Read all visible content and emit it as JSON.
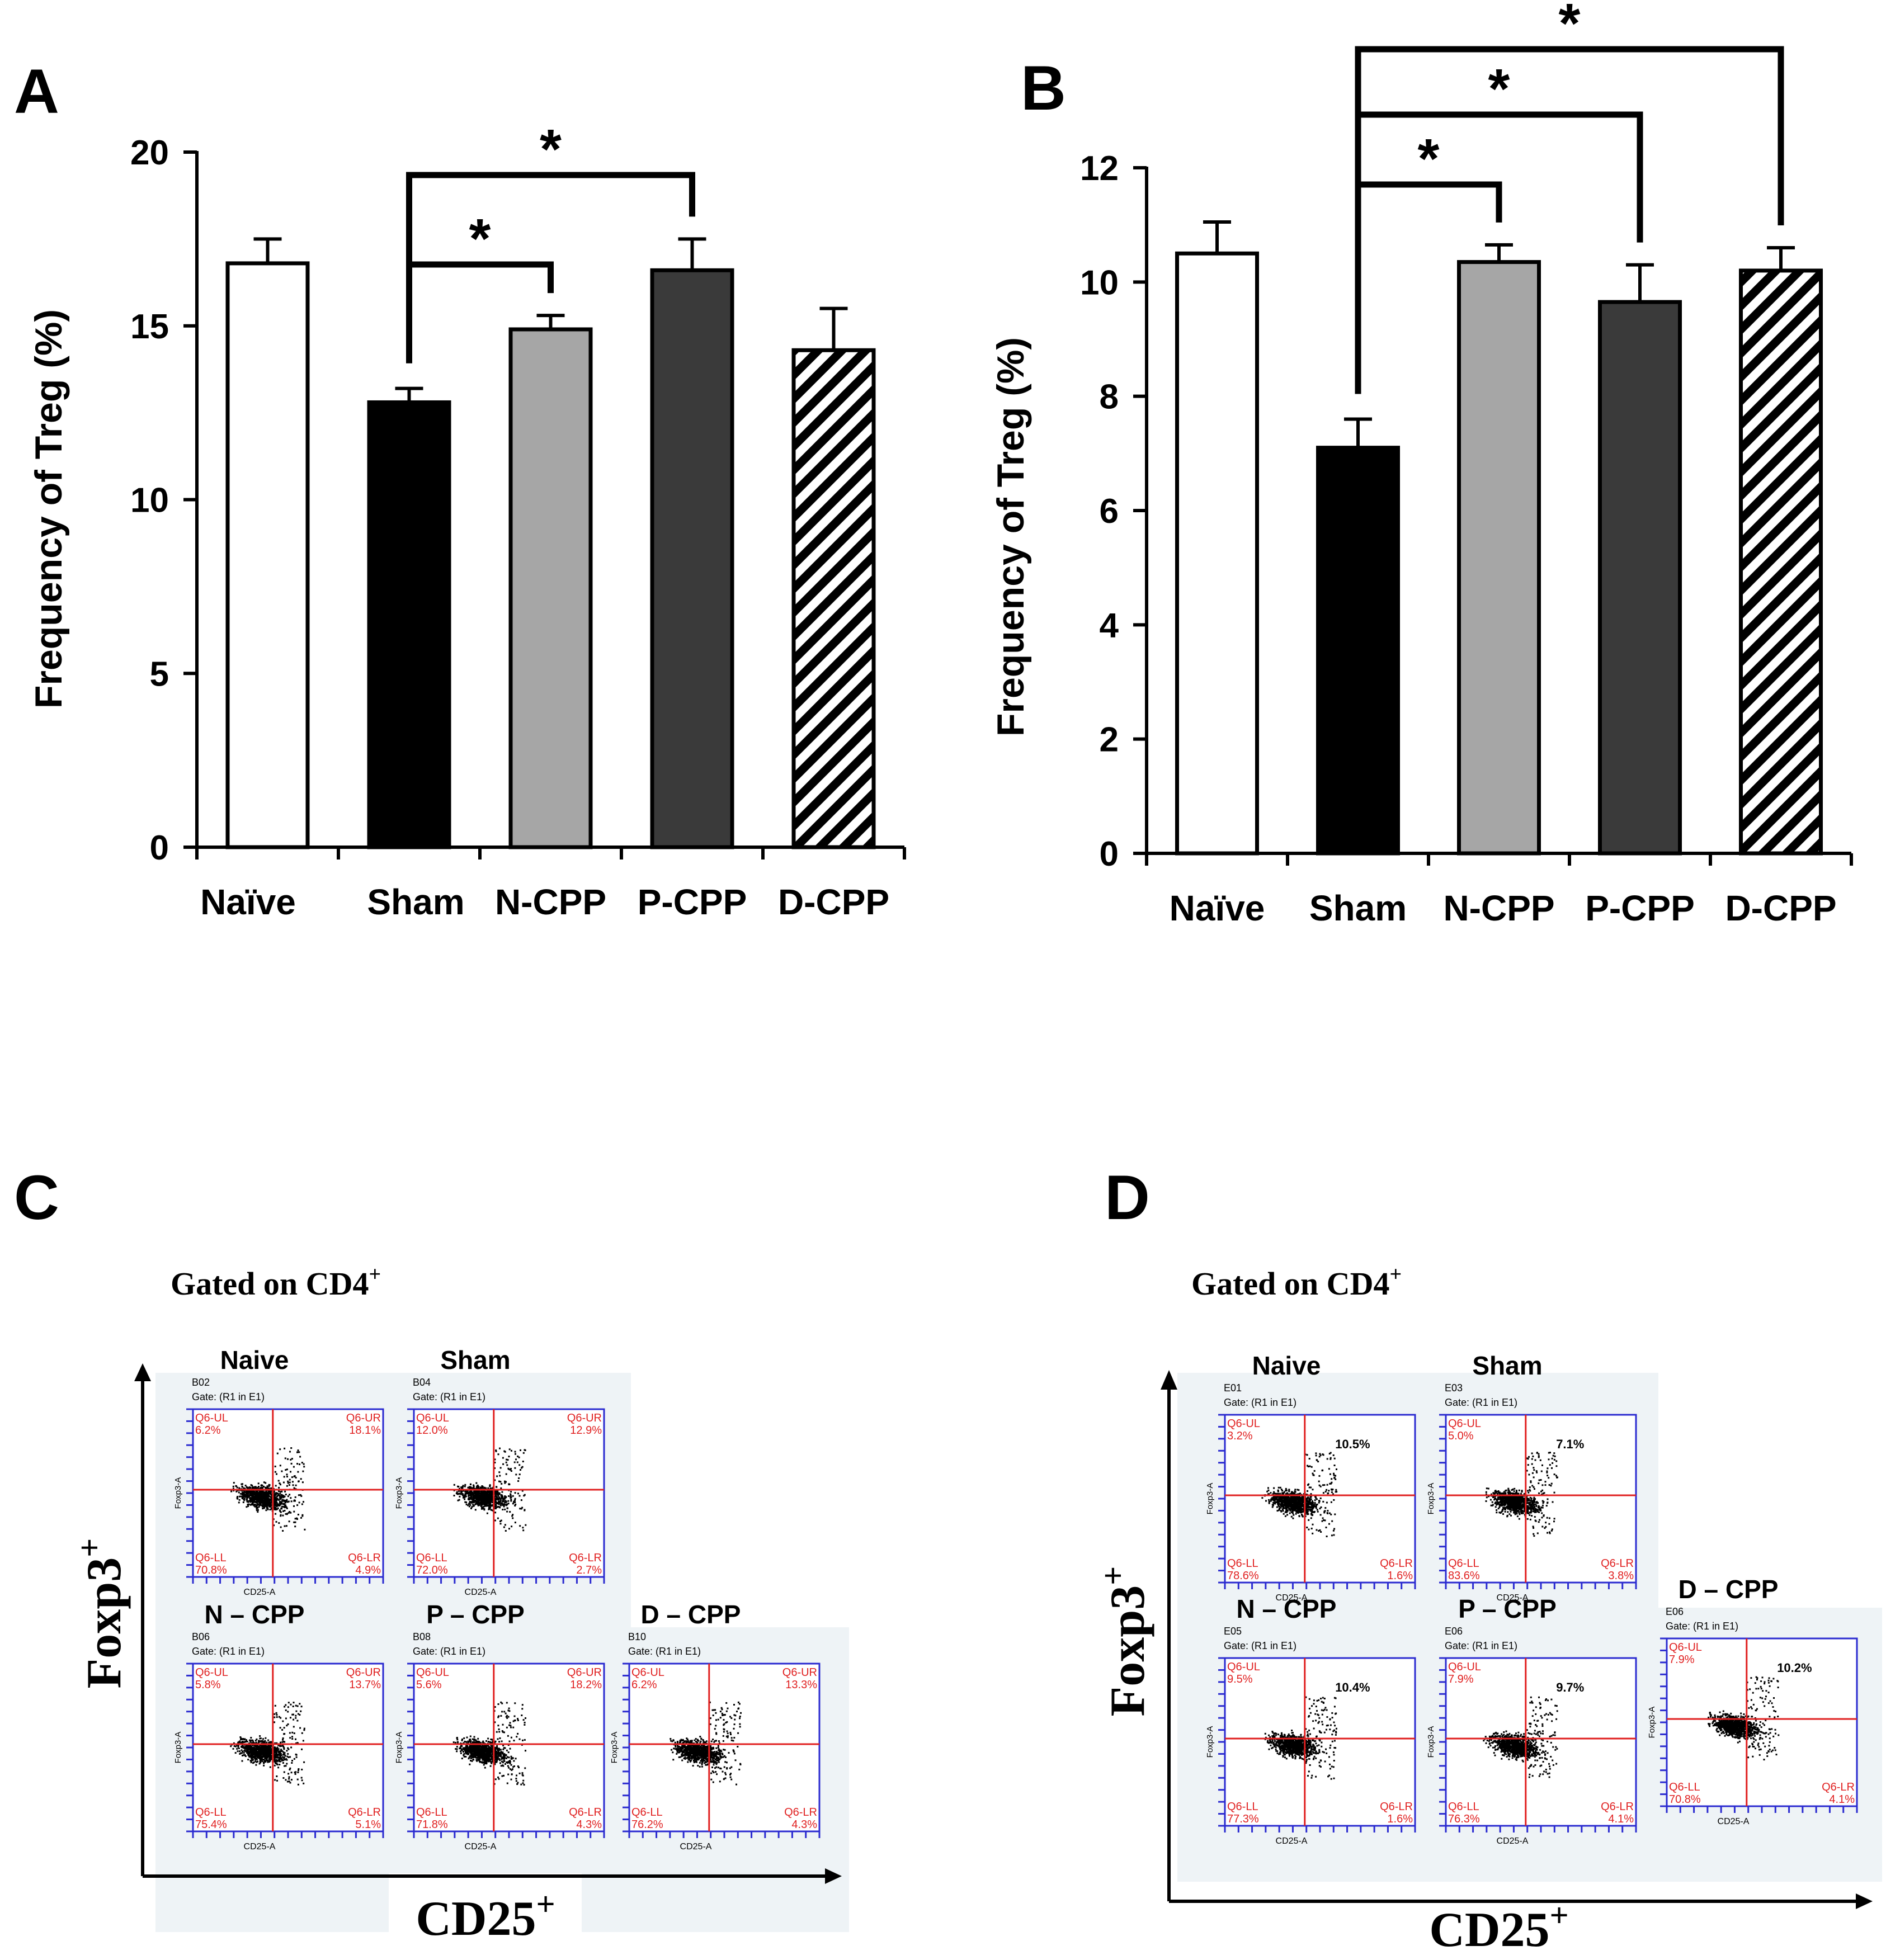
{
  "panels": [
    {
      "letter": "A",
      "chart_data": {
        "type": "bar",
        "ylabel": "Frequency of Treg (%)",
        "ylim": [
          0,
          20
        ],
        "yticks": [
          0,
          5,
          10,
          15,
          20
        ],
        "categories": [
          "Naïve",
          "Sham",
          "N-CPP",
          "P-CPP",
          "D-CPP"
        ],
        "values": [
          16.8,
          12.8,
          14.9,
          16.6,
          14.3
        ],
        "errors": [
          0.7,
          0.4,
          0.4,
          0.9,
          1.2
        ],
        "fills": [
          "#ffffff",
          "#000000",
          "#a6a6a6",
          "#3a3a3a",
          "hatch"
        ],
        "significance": [
          {
            "from": "Sham",
            "to": "N-CPP",
            "label": "*"
          },
          {
            "from": "Sham",
            "to": "P-CPP",
            "label": "*"
          }
        ]
      }
    },
    {
      "letter": "B",
      "chart_data": {
        "type": "bar",
        "ylabel": "Frequency of Treg (%)",
        "ylim": [
          0,
          12
        ],
        "yticks": [
          0,
          2,
          4,
          6,
          8,
          10,
          12
        ],
        "categories": [
          "Naïve",
          "Sham",
          "N-CPP",
          "P-CPP",
          "D-CPP"
        ],
        "values": [
          10.5,
          7.1,
          10.35,
          9.65,
          10.2
        ],
        "errors": [
          0.55,
          0.5,
          0.3,
          0.65,
          0.4
        ],
        "fills": [
          "#ffffff",
          "#000000",
          "#a6a6a6",
          "#3a3a3a",
          "hatch"
        ],
        "significance": [
          {
            "from": "Sham",
            "to": "N-CPP",
            "label": "*"
          },
          {
            "from": "Sham",
            "to": "P-CPP",
            "label": "*"
          },
          {
            "from": "Sham",
            "to": "D-CPP",
            "label": "*"
          }
        ]
      }
    }
  ],
  "flow": [
    {
      "letter": "C",
      "gated_label": "Gated on CD4",
      "gated_sup": "+",
      "yaxis_label": "Foxp3",
      "yaxis_sup": "+",
      "xaxis_label": "CD25",
      "xaxis_sup": "+",
      "plots": [
        {
          "title": "Naive",
          "well": "B02",
          "gate": "Gate: (R1 in E1)",
          "ul": "Q6-UL",
          "ul_val": "6.2%",
          "ur": "Q6-UR",
          "ur_val": "18.1%",
          "ll": "Q6-LL",
          "ll_val": "70.8%",
          "lr": "Q6-LR",
          "lr_val": "4.9%",
          "center": "",
          "xlabel": "CD25-A",
          "ylabel": "Foxp3-A"
        },
        {
          "title": "Sham",
          "well": "B04",
          "gate": "Gate: (R1 in E1)",
          "ul": "Q6-UL",
          "ul_val": "12.0%",
          "ur": "Q6-UR",
          "ur_val": "12.9%",
          "ll": "Q6-LL",
          "ll_val": "72.0%",
          "lr": "Q6-LR",
          "lr_val": "2.7%",
          "center": "",
          "xlabel": "CD25-A",
          "ylabel": "Foxp3-A"
        },
        {
          "title": "N – CPP",
          "well": "B06",
          "gate": "Gate: (R1 in E1)",
          "ul": "Q6-UL",
          "ul_val": "5.8%",
          "ur": "Q6-UR",
          "ur_val": "13.7%",
          "ll": "Q6-LL",
          "ll_val": "75.4%",
          "lr": "Q6-LR",
          "lr_val": "5.1%",
          "center": "",
          "xlabel": "CD25-A",
          "ylabel": "Foxp3-A"
        },
        {
          "title": "P – CPP",
          "well": "B08",
          "gate": "Gate: (R1 in E1)",
          "ul": "Q6-UL",
          "ul_val": "5.6%",
          "ur": "Q6-UR",
          "ur_val": "18.2%",
          "ll": "Q6-LL",
          "ll_val": "71.8%",
          "lr": "Q6-LR",
          "lr_val": "4.3%",
          "center": "",
          "xlabel": "CD25-A",
          "ylabel": "Foxp3-A"
        },
        {
          "title": "D – CPP",
          "well": "B10",
          "gate": "Gate: (R1 in E1)",
          "ul": "Q6-UL",
          "ul_val": "6.2%",
          "ur": "Q6-UR",
          "ur_val": "13.3%",
          "ll": "Q6-LL",
          "ll_val": "76.2%",
          "lr": "Q6-LR",
          "lr_val": "4.3%",
          "center": "",
          "xlabel": "CD25-A",
          "ylabel": "Foxp3-A"
        }
      ]
    },
    {
      "letter": "D",
      "gated_label": "Gated on CD4",
      "gated_sup": "+",
      "yaxis_label": "Foxp3",
      "yaxis_sup": "+",
      "xaxis_label": "CD25",
      "xaxis_sup": "+",
      "plots": [
        {
          "title": "Naive",
          "well": "E01",
          "gate": "Gate: (R1 in E1)",
          "ul": "Q6-UL",
          "ul_val": "3.2%",
          "ur": "",
          "ur_val": "",
          "ll": "Q6-LL",
          "ll_val": "78.6%",
          "lr": "Q6-LR",
          "lr_val": "1.6%",
          "center": "10.5%",
          "xlabel": "CD25-A",
          "ylabel": "Foxp3-A"
        },
        {
          "title": "Sham",
          "well": "E03",
          "gate": "Gate: (R1 in E1)",
          "ul": "Q6-UL",
          "ul_val": "5.0%",
          "ur": "",
          "ur_val": "",
          "ll": "Q6-LL",
          "ll_val": "83.6%",
          "lr": "Q6-LR",
          "lr_val": "3.8%",
          "center": "7.1%",
          "xlabel": "CD25-A",
          "ylabel": "Foxp3-A"
        },
        {
          "title": "N – CPP",
          "well": "E05",
          "gate": "Gate: (R1 in E1)",
          "ul": "Q6-UL",
          "ul_val": "9.5%",
          "ur": "",
          "ur_val": "",
          "ll": "Q6-LL",
          "ll_val": "77.3%",
          "lr": "Q6-LR",
          "lr_val": "1.6%",
          "center": "10.4%",
          "xlabel": "CD25-A",
          "ylabel": "Foxp3-A"
        },
        {
          "title": "P – CPP",
          "well": "E06",
          "gate": "Gate: (R1 in E1)",
          "ul": "Q6-UL",
          "ul_val": "7.9%",
          "ur": "",
          "ur_val": "",
          "ll": "Q6-LL",
          "ll_val": "76.3%",
          "lr": "Q6-LR",
          "lr_val": "4.1%",
          "center": "9.7%",
          "xlabel": "CD25-A",
          "ylabel": "Foxp3-A"
        },
        {
          "title": "D – CPP",
          "well": "E06",
          "gate": "Gate: (R1 in E1)",
          "ul": "Q6-UL",
          "ul_val": "7.9%",
          "ur": "",
          "ur_val": "",
          "ll": "Q6-LL",
          "ll_val": "70.8%",
          "lr": "Q6-LR",
          "lr_val": "4.1%",
          "center": "10.2%",
          "xlabel": "CD25-A",
          "ylabel": "Foxp3-A"
        }
      ]
    }
  ]
}
